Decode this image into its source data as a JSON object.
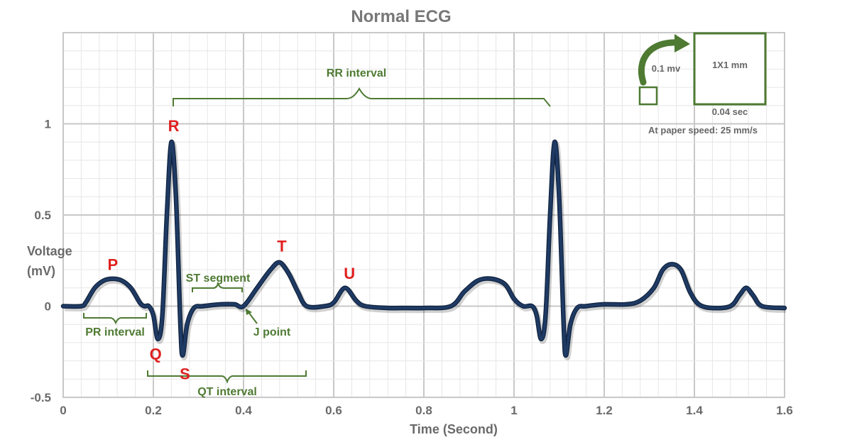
{
  "chart_data": {
    "type": "line",
    "title": "Normal ECG",
    "xlabel": "Time (Second)",
    "ylabel_lines": [
      "Voltage",
      "(mV)"
    ],
    "xlim": [
      0,
      1.6
    ],
    "ylim": [
      -0.5,
      1.5
    ],
    "x_ticks": [
      0,
      0.2,
      0.4,
      0.6,
      0.8,
      1,
      1.2,
      1.4,
      1.6
    ],
    "x_tick_labels": [
      "0",
      "0.2",
      "0.4",
      "0.6",
      "0.8",
      "1",
      "1.2",
      "1.4",
      "1.6"
    ],
    "y_ticks": [
      -0.5,
      0,
      0.5,
      1
    ],
    "y_tick_labels": [
      "-0.5",
      "0",
      "0.5",
      "1"
    ],
    "grid": true,
    "series": [
      {
        "color": "#1f3a63",
        "points": [
          [
            0.0,
            0.0
          ],
          [
            0.04,
            0.0
          ],
          [
            0.05,
            0.02
          ],
          [
            0.07,
            0.1
          ],
          [
            0.09,
            0.14
          ],
          [
            0.11,
            0.15
          ],
          [
            0.13,
            0.14
          ],
          [
            0.15,
            0.1
          ],
          [
            0.17,
            0.02
          ],
          [
            0.18,
            0.0
          ],
          [
            0.19,
            0.0
          ],
          [
            0.2,
            -0.05
          ],
          [
            0.21,
            -0.18
          ],
          [
            0.22,
            -0.05
          ],
          [
            0.23,
            0.5
          ],
          [
            0.24,
            0.9
          ],
          [
            0.25,
            0.6
          ],
          [
            0.26,
            -0.1
          ],
          [
            0.265,
            -0.27
          ],
          [
            0.275,
            -0.1
          ],
          [
            0.29,
            -0.01
          ],
          [
            0.31,
            0.0
          ],
          [
            0.35,
            0.01
          ],
          [
            0.38,
            0.01
          ],
          [
            0.4,
            0.0
          ],
          [
            0.43,
            0.1
          ],
          [
            0.46,
            0.2
          ],
          [
            0.48,
            0.24
          ],
          [
            0.5,
            0.18
          ],
          [
            0.52,
            0.08
          ],
          [
            0.54,
            0.0
          ],
          [
            0.58,
            0.0
          ],
          [
            0.6,
            0.02
          ],
          [
            0.625,
            0.1
          ],
          [
            0.65,
            0.03
          ],
          [
            0.67,
            0.0
          ],
          [
            0.72,
            -0.01
          ],
          [
            0.75,
            -0.01
          ],
          [
            0.8,
            -0.01
          ],
          [
            0.86,
            0.0
          ],
          [
            0.89,
            0.08
          ],
          [
            0.92,
            0.14
          ],
          [
            0.95,
            0.15
          ],
          [
            0.98,
            0.12
          ],
          [
            1.0,
            0.04
          ],
          [
            1.02,
            0.0
          ],
          [
            1.04,
            0.0
          ],
          [
            1.05,
            -0.05
          ],
          [
            1.06,
            -0.18
          ],
          [
            1.07,
            -0.05
          ],
          [
            1.08,
            0.5
          ],
          [
            1.09,
            0.9
          ],
          [
            1.1,
            0.6
          ],
          [
            1.11,
            -0.1
          ],
          [
            1.115,
            -0.27
          ],
          [
            1.125,
            -0.1
          ],
          [
            1.14,
            -0.01
          ],
          [
            1.16,
            0.0
          ],
          [
            1.2,
            0.01
          ],
          [
            1.25,
            0.01
          ],
          [
            1.28,
            0.03
          ],
          [
            1.31,
            0.1
          ],
          [
            1.33,
            0.2
          ],
          [
            1.35,
            0.23
          ],
          [
            1.37,
            0.2
          ],
          [
            1.39,
            0.08
          ],
          [
            1.41,
            0.01
          ],
          [
            1.44,
            -0.01
          ],
          [
            1.48,
            0.0
          ],
          [
            1.5,
            0.06
          ],
          [
            1.515,
            0.1
          ],
          [
            1.53,
            0.06
          ],
          [
            1.55,
            0.0
          ],
          [
            1.6,
            -0.01
          ]
        ]
      }
    ],
    "wave_labels": [
      {
        "text": "P",
        "x": 0.11,
        "y": 0.23
      },
      {
        "text": "Q",
        "x": 0.205,
        "y": -0.26
      },
      {
        "text": "R",
        "x": 0.245,
        "y": 0.99
      },
      {
        "text": "S",
        "x": 0.27,
        "y": -0.37
      },
      {
        "text": "T",
        "x": 0.485,
        "y": 0.33
      },
      {
        "text": "U",
        "x": 0.635,
        "y": 0.18
      }
    ],
    "annotations": {
      "rr_interval": "RR interval",
      "pr_interval": "PR interval",
      "st_segment": "ST segment",
      "qt_interval": "QT interval",
      "j_point": "J point"
    },
    "calibration": {
      "voltage": "0.1 mv",
      "box": "1X1 mm",
      "time": "0.04 sec",
      "speed": "At paper speed: 25 mm/s"
    },
    "colors": {
      "wave_label": "#e02020",
      "annotation": "#4e7a32",
      "line": "#1f3a63",
      "grid_major": "#c8c8c8",
      "grid_minor": "#e6e6e6",
      "axis_text": "#6a6a6a"
    }
  }
}
